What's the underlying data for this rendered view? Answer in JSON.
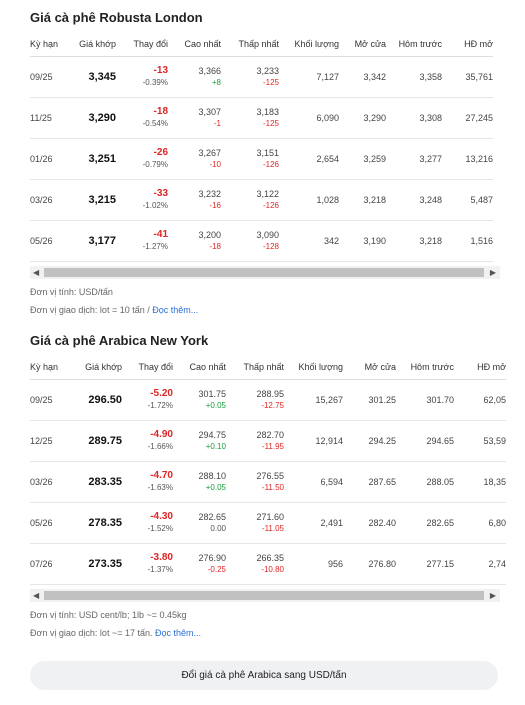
{
  "sections": [
    {
      "title": "Giá cà phê Robusta London",
      "headers": [
        "Kỳ hạn",
        "Giá khớp",
        "Thay đổi",
        "Cao nhất",
        "Thấp nhất",
        "Khối lượng",
        "Mở cửa",
        "Hôm trước",
        "HĐ mở"
      ],
      "rows": [
        [
          "09/25",
          "3,345",
          "-13",
          "-0.39%",
          "3,366",
          "+8",
          "3,233",
          "-125",
          "7,127",
          "3,342",
          "3,358",
          "35,761"
        ],
        [
          "11/25",
          "3,290",
          "-18",
          "-0.54%",
          "3,307",
          "-1",
          "3,183",
          "-125",
          "6,090",
          "3,290",
          "3,308",
          "27,245"
        ],
        [
          "01/26",
          "3,251",
          "-26",
          "-0.79%",
          "3,267",
          "-10",
          "3,151",
          "-126",
          "2,654",
          "3,259",
          "3,277",
          "13,216"
        ],
        [
          "03/26",
          "3,215",
          "-33",
          "-1.02%",
          "3,232",
          "-16",
          "3,122",
          "-126",
          "1,028",
          "3,218",
          "3,248",
          "5,487"
        ],
        [
          "05/26",
          "3,177",
          "-41",
          "-1.27%",
          "3,200",
          "-18",
          "3,090",
          "-128",
          "342",
          "3,190",
          "3,218",
          "1,516"
        ]
      ],
      "unit": "Đơn vị tính: USD/tấn",
      "lot": "Đơn vị giao dịch: lot = 10 tấn / ",
      "read_more": "Đọc thêm..."
    },
    {
      "title": "Giá cà phê Arabica New York",
      "headers": [
        "Kỳ hạn",
        "Giá khớp",
        "Thay đổi",
        "Cao nhất",
        "Thấp nhất",
        "Khối lượng",
        "Mở cửa",
        "Hôm trước",
        "HĐ mở"
      ],
      "rows": [
        [
          "09/25",
          "296.50",
          "-5.20",
          "-1.72%",
          "301.75",
          "+0.05",
          "288.95",
          "-12.75",
          "15,267",
          "301.25",
          "301.70",
          "62,05"
        ],
        [
          "12/25",
          "289.75",
          "-4.90",
          "-1.66%",
          "294.75",
          "+0.10",
          "282.70",
          "-11.95",
          "12,914",
          "294.25",
          "294.65",
          "53,59"
        ],
        [
          "03/26",
          "283.35",
          "-4.70",
          "-1.63%",
          "288.10",
          "+0.05",
          "276.55",
          "-11.50",
          "6,594",
          "287.65",
          "288.05",
          "18,35"
        ],
        [
          "05/26",
          "278.35",
          "-4.30",
          "-1.52%",
          "282.65",
          "0.00",
          "271.60",
          "-11.05",
          "2,491",
          "282.40",
          "282.65",
          "6,80"
        ],
        [
          "07/26",
          "273.35",
          "-3.80",
          "-1.37%",
          "276.90",
          "-0.25",
          "266.35",
          "-10.80",
          "956",
          "276.80",
          "277.15",
          "2,74"
        ]
      ],
      "unit": "Đơn vị tính: USD cent/lb; 1lb ~= 0.45kg",
      "lot": "Đơn vị giao dịch: lot ~= 17 tấn. ",
      "read_more": "Đọc thêm..."
    }
  ],
  "button": "Đổi giá cà phê Arabica sang USD/tấn"
}
